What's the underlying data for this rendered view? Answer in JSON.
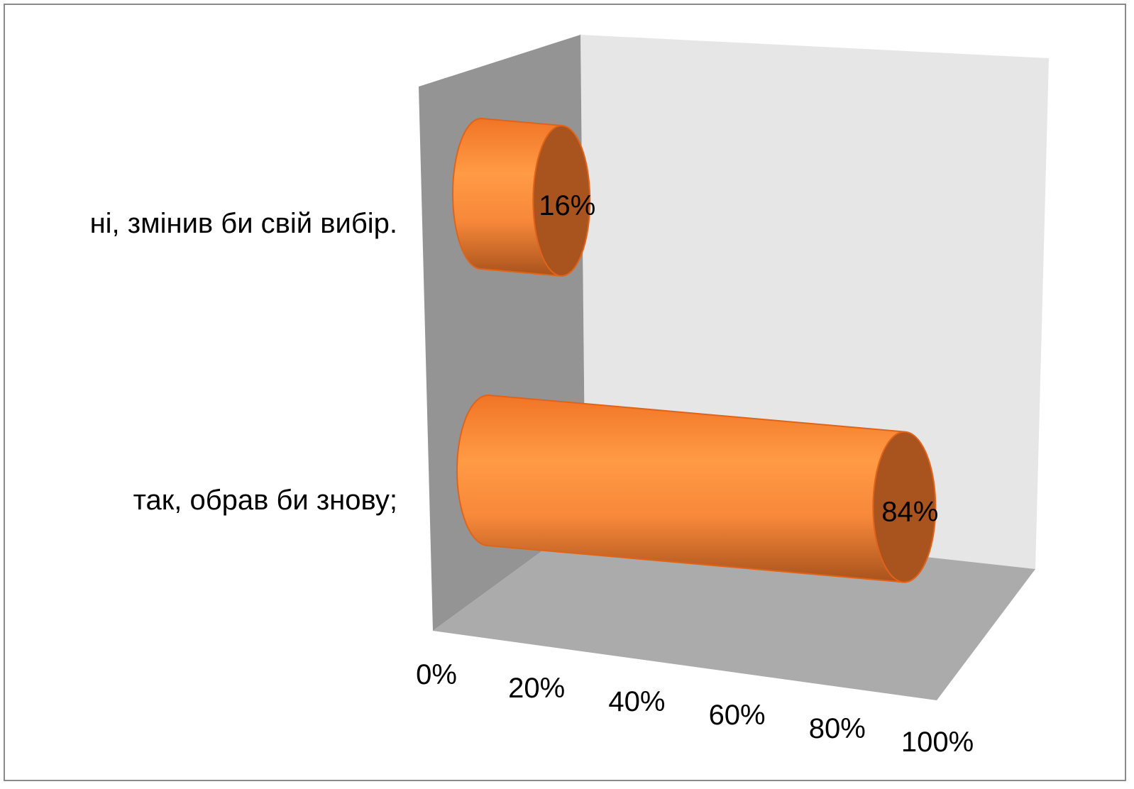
{
  "chart_data": {
    "type": "bar",
    "orientation": "horizontal",
    "style": "3d-cylinder",
    "categories": [
      "ні, змінив би свій вибір.",
      "так, обрав би знову;"
    ],
    "values": [
      16,
      84
    ],
    "data_labels": [
      "16%",
      "84%"
    ],
    "x_ticks": [
      "0%",
      "20%",
      "40%",
      "60%",
      "80%",
      "100%"
    ],
    "xlim": [
      0,
      100
    ],
    "title": "",
    "xlabel": "",
    "ylabel": "",
    "grid": false,
    "legend": "none",
    "colors": {
      "bar_fill": "#F7883A",
      "bar_edge": "#E0631A",
      "bar_cap": "#A9541F",
      "back_wall": "#E6E6E6",
      "side_wall": "#949494",
      "floor": "#ABABAB"
    }
  }
}
